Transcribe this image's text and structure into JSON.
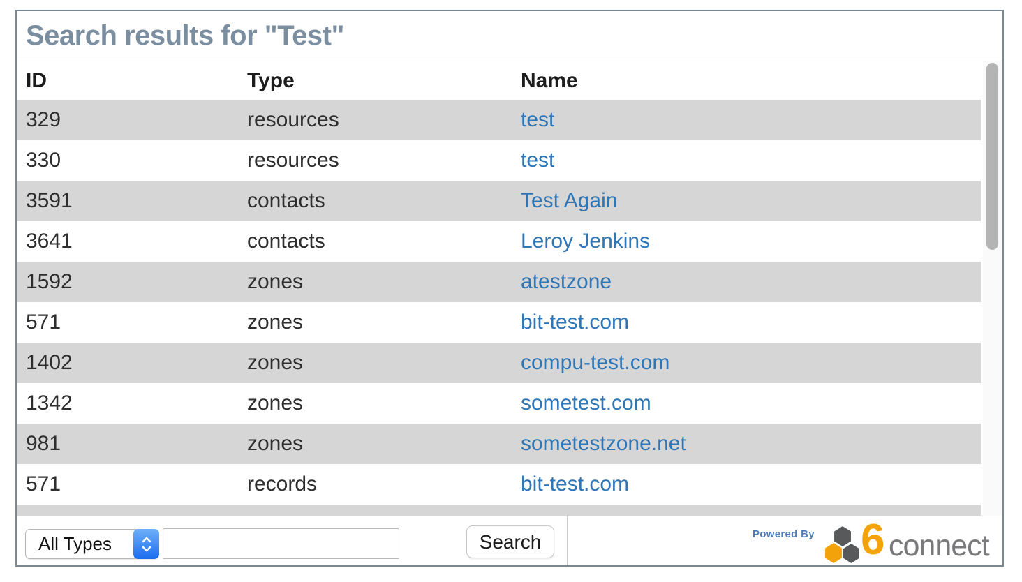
{
  "title": "Search results for \"Test\"",
  "table": {
    "columns": [
      {
        "key": "id",
        "label": "ID"
      },
      {
        "key": "type",
        "label": "Type"
      },
      {
        "key": "name",
        "label": "Name"
      }
    ],
    "rows": [
      {
        "id": "329",
        "type": "resources",
        "name": "test"
      },
      {
        "id": "330",
        "type": "resources",
        "name": "test"
      },
      {
        "id": "3591",
        "type": "contacts",
        "name": "Test Again"
      },
      {
        "id": "3641",
        "type": "contacts",
        "name": "Leroy Jenkins"
      },
      {
        "id": "1592",
        "type": "zones",
        "name": "atestzone"
      },
      {
        "id": "571",
        "type": "zones",
        "name": "bit-test.com"
      },
      {
        "id": "1402",
        "type": "zones",
        "name": "compu-test.com"
      },
      {
        "id": "1342",
        "type": "zones",
        "name": "sometest.com"
      },
      {
        "id": "981",
        "type": "zones",
        "name": "sometestzone.net"
      },
      {
        "id": "571",
        "type": "records",
        "name": "bit-test.com"
      }
    ]
  },
  "footer": {
    "type_select": {
      "selected_option": "All Types"
    },
    "search_input": {
      "value": "",
      "placeholder": ""
    },
    "search_button_label": "Search",
    "powered_by_label": "Powered By",
    "brand": {
      "digit": "6",
      "word": "connect"
    }
  },
  "colors": {
    "title_text": "#7b8ea0",
    "link_blue": "#2e76b6",
    "row_stripe_gray": "#d6d6d6",
    "modal_border": "#7a8893",
    "brand_orange": "#f3a20a",
    "brand_dark_gray": "#58595b",
    "brand_word_gray": "#7a7a7d",
    "powered_by_blue": "#4d7cb9",
    "select_stepper_blue": "#1b6cf0"
  }
}
